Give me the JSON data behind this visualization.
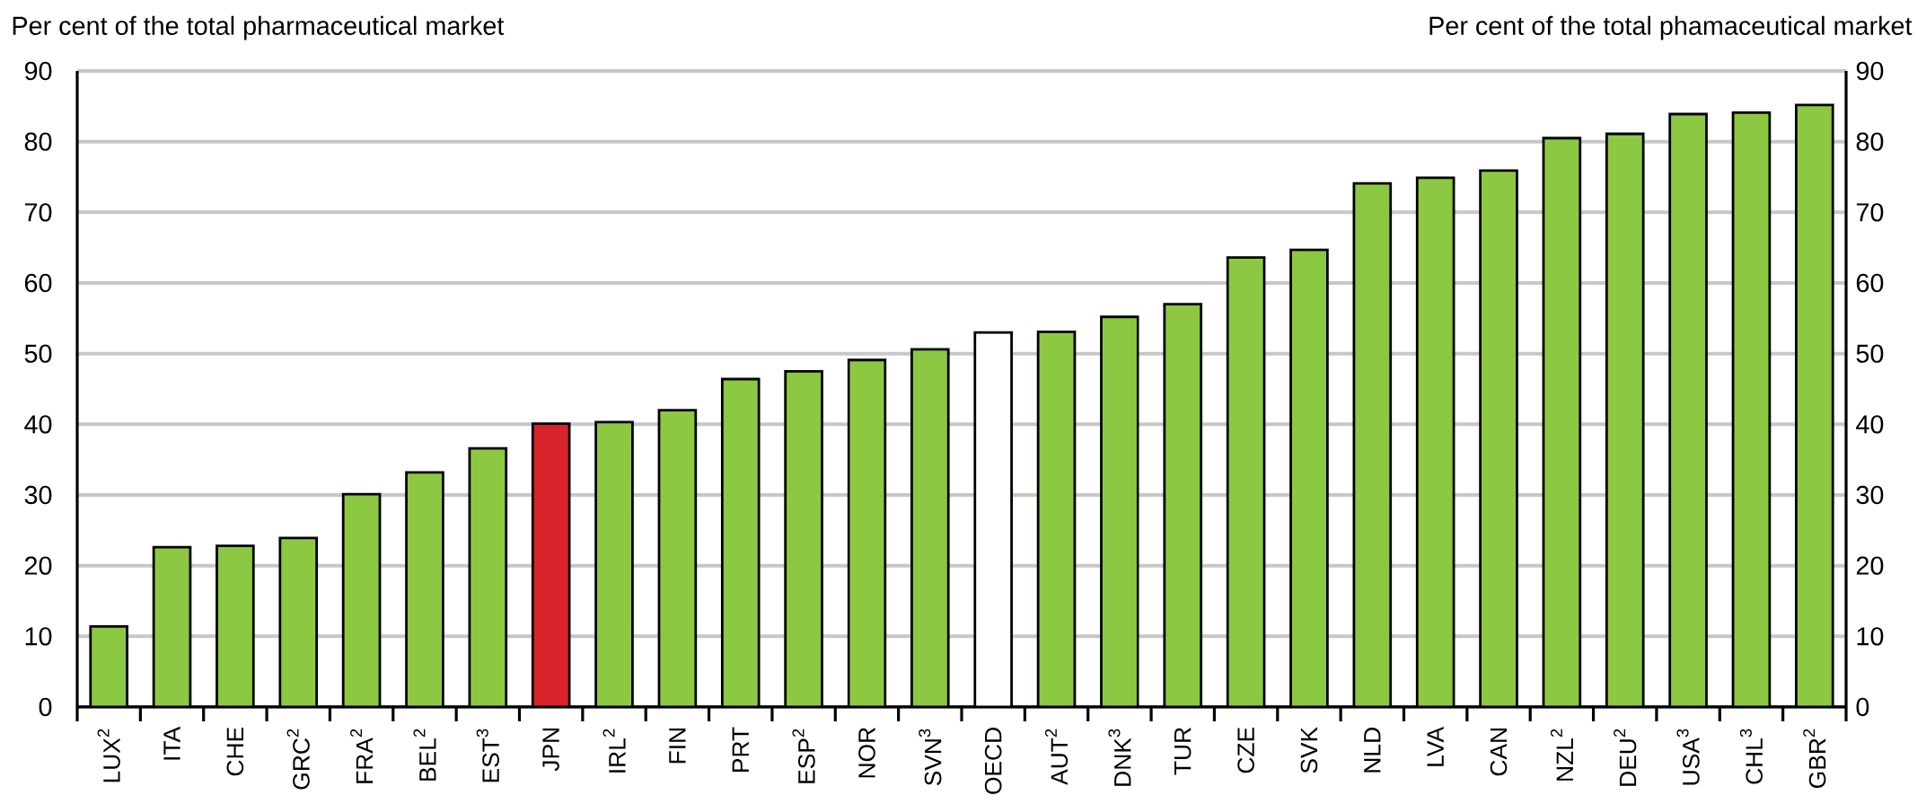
{
  "chart_data": {
    "type": "bar",
    "ylabel": "Per cent of the total pharmaceutical market",
    "y2label": "Per cent of the total phamaceutical market",
    "categories": [
      "LUX$^{2}$",
      "ITA",
      "CHE",
      "GRC$^{2}$",
      "FRA$^{2}$",
      "BEL$^{2}$",
      "EST$^{3}$",
      "JPN",
      "IRL$^{2}$",
      "FIN",
      "PRT",
      "ESP$^{2}$",
      "NOR",
      "SVN$^{3}$",
      "OECD",
      "AUT$^{2}$",
      "DNK$^{3}$",
      "TUR",
      "CZE",
      "SVK",
      "NLD",
      "LVA",
      "CAN",
      "NZL$^{2}$",
      "DEU$^{2}$",
      "USA$^{3}$",
      "CHL$^{3}$",
      "GBR$^{2}$"
    ],
    "values": [
      11.4,
      22.6,
      22.8,
      23.9,
      30.1,
      33.2,
      36.6,
      40.1,
      40.3,
      42.0,
      46.4,
      47.5,
      49.1,
      50.6,
      53.0,
      53.1,
      55.2,
      57.0,
      63.6,
      64.7,
      74.1,
      74.9,
      75.9,
      80.5,
      81.1,
      83.9,
      84.1,
      85.2
    ],
    "colors": [
      "#8cc841",
      "#8cc841",
      "#8cc841",
      "#8cc841",
      "#8cc841",
      "#8cc841",
      "#8cc841",
      "#d9232a",
      "#8cc841",
      "#8cc841",
      "#8cc841",
      "#8cc841",
      "#8cc841",
      "#8cc841",
      "#ffffff",
      "#8cc841",
      "#8cc841",
      "#8cc841",
      "#8cc841",
      "#8cc841",
      "#8cc841",
      "#8cc841",
      "#8cc841",
      "#8cc841",
      "#8cc841",
      "#8cc841",
      "#8cc841",
      "#8cc841"
    ],
    "ylim": [
      0,
      90
    ],
    "yticks": [
      0,
      10,
      20,
      30,
      40,
      50,
      60,
      70,
      80,
      90
    ],
    "y2lim": [
      0,
      90
    ],
    "y2ticks": [
      0,
      10,
      20,
      30,
      40,
      50,
      60,
      70,
      80,
      90
    ],
    "grid": "y"
  }
}
